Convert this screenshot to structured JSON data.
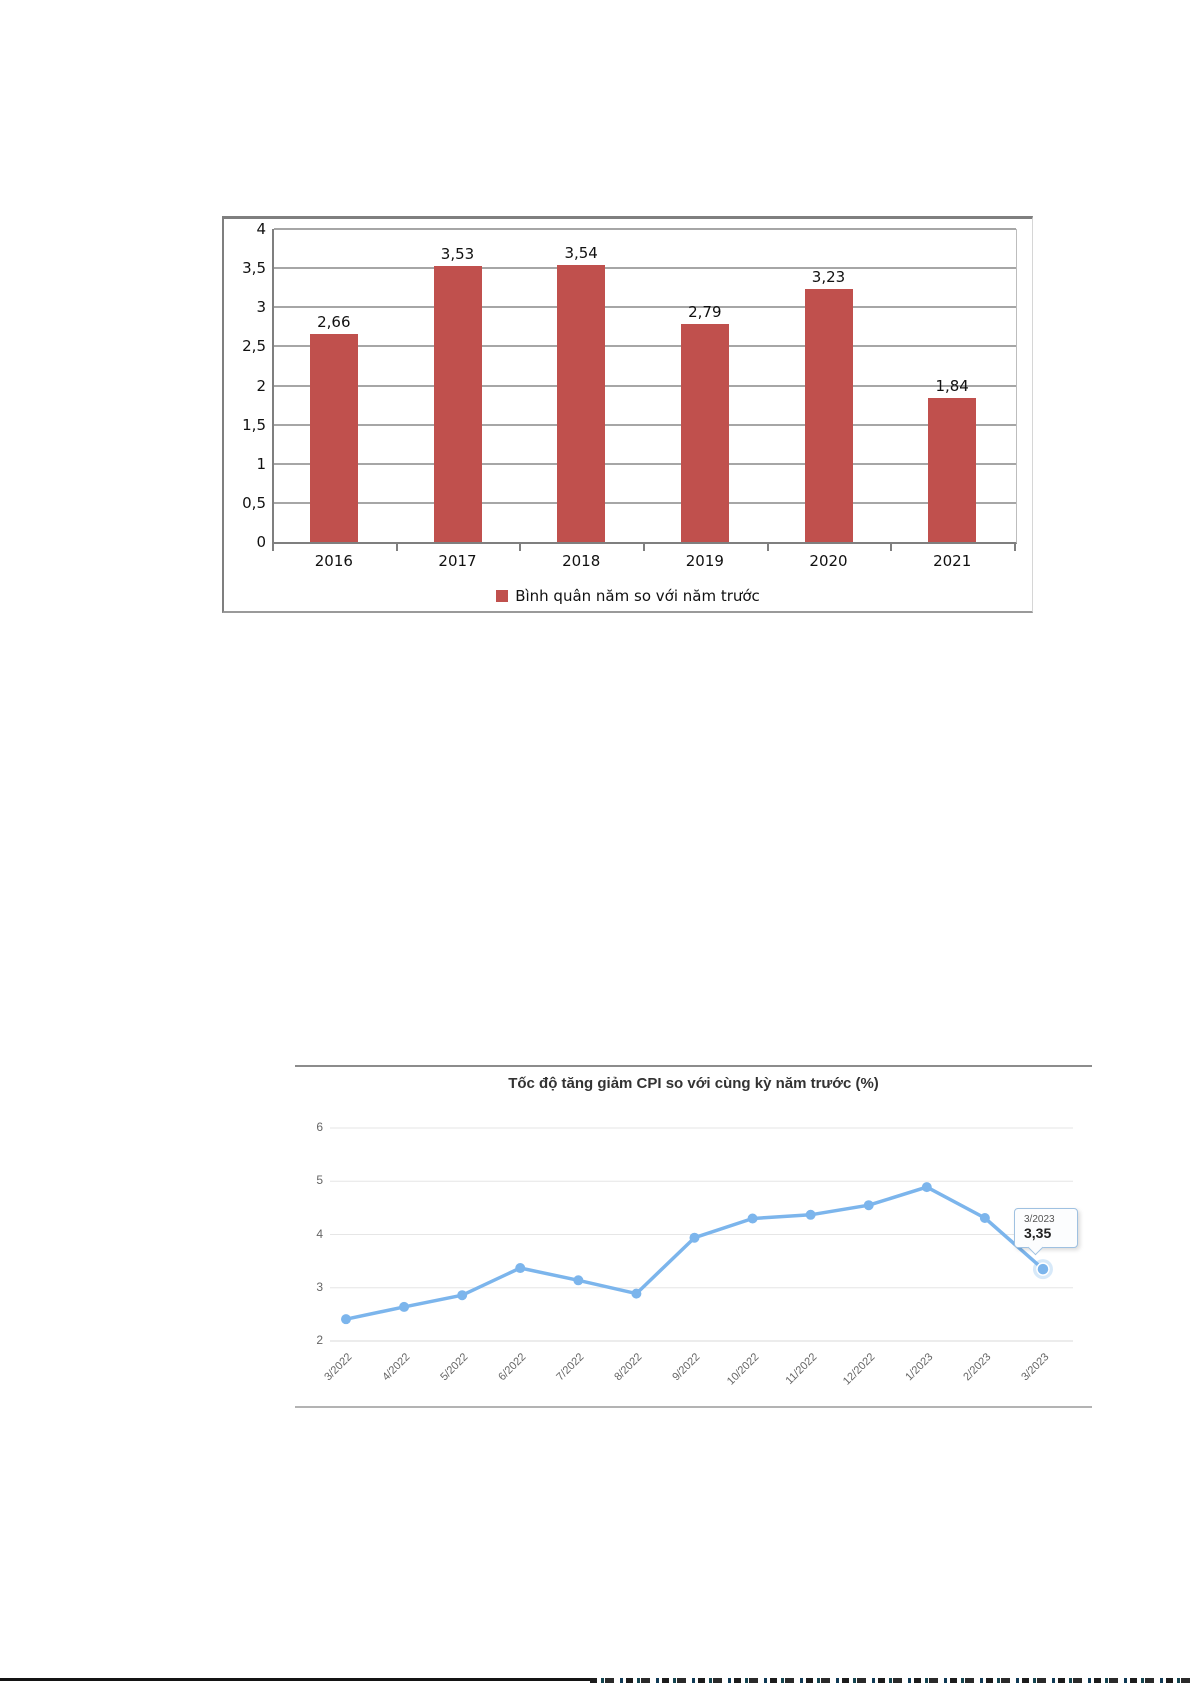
{
  "chart_data": [
    {
      "type": "bar",
      "title": "",
      "categories": [
        "2016",
        "2017",
        "2018",
        "2019",
        "2020",
        "2021"
      ],
      "values": [
        2.66,
        3.53,
        3.54,
        2.79,
        3.23,
        1.84
      ],
      "value_labels": [
        "2,66",
        "3,53",
        "3,54",
        "2,79",
        "3,23",
        "1,84"
      ],
      "y_tick_labels": [
        "4",
        "3,5",
        "3",
        "2,5",
        "2",
        "1,5",
        "1",
        "0,5",
        "0"
      ],
      "ylim": [
        0,
        4
      ],
      "grid": true,
      "legend": "Bình quân năm so với năm trước",
      "legend_position": "bottom",
      "bar_color": "#c0504d",
      "grid_color": "#a6a6a6",
      "axis_color": "#7f7f7f"
    },
    {
      "type": "line",
      "title": "Tốc độ tăng giảm CPI so với cùng kỳ năm trước (%)",
      "categories": [
        "3/2022",
        "4/2022",
        "5/2022",
        "6/2022",
        "7/2022",
        "8/2022",
        "9/2022",
        "10/2022",
        "11/2022",
        "12/2022",
        "1/2023",
        "2/2023",
        "3/2023"
      ],
      "values": [
        2.41,
        2.64,
        2.86,
        3.37,
        3.14,
        2.89,
        3.94,
        4.3,
        4.37,
        4.55,
        4.89,
        4.31,
        3.35
      ],
      "y_ticks": [
        6,
        5,
        4,
        3,
        2
      ],
      "ylim": [
        2,
        6
      ],
      "grid": true,
      "legend_position": "none",
      "line_color": "#7cb5ec",
      "grid_color": "#e6e6e6",
      "tooltip": {
        "label": "3/2023",
        "value": "3,35"
      }
    }
  ]
}
